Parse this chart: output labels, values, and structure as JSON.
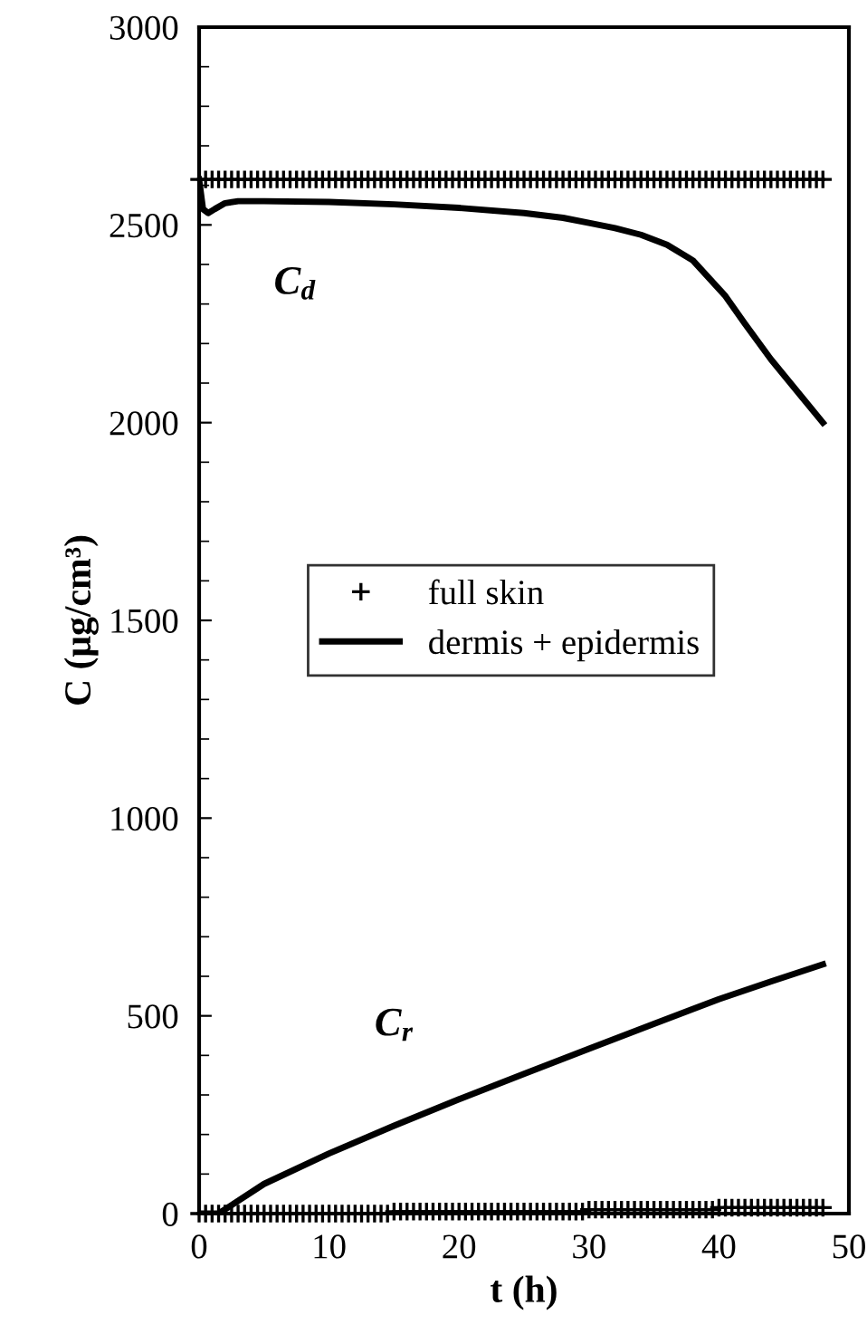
{
  "chart_data": {
    "type": "line",
    "xlabel": "t (h)",
    "ylabel": "C (μg/cm³)",
    "xlim": [
      0,
      50
    ],
    "xticks": [
      0,
      10,
      20,
      30,
      40,
      50
    ],
    "ylim": [
      0,
      3000
    ],
    "yticks": [
      0,
      500,
      1000,
      1500,
      2000,
      2500,
      3000
    ],
    "grid": false,
    "legend": "center",
    "annotations": [
      "C$_{d}$",
      "C$_{r}$"
    ],
    "series": [
      {
        "name": "full skin",
        "type": "scatter",
        "marker": "cross",
        "color": "#000000",
        "x": [
          0,
          0.5,
          1,
          1.5,
          2,
          2.5,
          3,
          3.5,
          4,
          4.5,
          5,
          5.5,
          6,
          6.5,
          7,
          7.5,
          8,
          8.5,
          9,
          9.5,
          10,
          10.5,
          11,
          11.5,
          12,
          12.5,
          13,
          13.5,
          14,
          14.5,
          15,
          15.5,
          16,
          16.5,
          17,
          17.5,
          18,
          18.5,
          19,
          19.5,
          20,
          20.5,
          21,
          21.5,
          22,
          22.5,
          23,
          23.5,
          24,
          24.5,
          25,
          25.5,
          26,
          26.5,
          27,
          27.5,
          28,
          28.5,
          29,
          29.5,
          30,
          30.5,
          31,
          31.5,
          32,
          32.5,
          33,
          33.5,
          34,
          34.5,
          35,
          35.5,
          36,
          36.5,
          37,
          37.5,
          38,
          38.5,
          39,
          39.5,
          40,
          40.5,
          41,
          41.5,
          42,
          42.5,
          43,
          43.5,
          44,
          44.5,
          45,
          45.5,
          46,
          46.5,
          47,
          47.5,
          48
        ],
        "values": [
          2615,
          2615,
          2615,
          2615,
          2615,
          2615,
          2615,
          2615,
          2615,
          2615,
          2615,
          2615,
          2615,
          2615,
          2615,
          2615,
          2615,
          2615,
          2615,
          2615,
          2615,
          2615,
          2615,
          2615,
          2615,
          2615,
          2615,
          2615,
          2615,
          2615,
          2615,
          2615,
          2615,
          2615,
          2615,
          2615,
          2615,
          2615,
          2615,
          2615,
          2615,
          2615,
          2615,
          2615,
          2615,
          2615,
          2615,
          2615,
          2615,
          2615,
          2615,
          2615,
          2615,
          2615,
          2615,
          2615,
          2615,
          2615,
          2615,
          2615,
          2615,
          2615,
          2615,
          2615,
          2615,
          2615,
          2615,
          2615,
          2615,
          2615,
          2615,
          2615,
          2615,
          2615,
          2615,
          2615,
          2615,
          2615,
          2615,
          2615,
          2615,
          2615,
          2615,
          2615,
          2615,
          2615,
          2615,
          2615,
          2615,
          2615,
          2615,
          2615,
          2615,
          2615,
          2615,
          2615,
          2615
        ]
      },
      {
        "type": "scatter",
        "marker": "cross",
        "color": "#000000",
        "x": [
          0,
          0.5,
          1,
          1.5,
          2,
          2.5,
          3,
          3.5,
          4,
          4.5,
          5,
          5.5,
          6,
          6.5,
          7,
          7.5,
          8,
          8.5,
          9,
          9.5,
          10,
          10.5,
          11,
          11.5,
          12,
          12.5,
          13,
          13.5,
          14,
          14.5,
          15,
          15.5,
          16,
          16.5,
          17,
          17.5,
          18,
          18.5,
          19,
          19.5,
          20,
          20.5,
          21,
          21.5,
          22,
          22.5,
          23,
          23.5,
          24,
          24.5,
          25,
          25.5,
          26,
          26.5,
          27,
          27.5,
          28,
          28.5,
          29,
          29.5,
          30,
          30.5,
          31,
          31.5,
          32,
          32.5,
          33,
          33.5,
          34,
          34.5,
          35,
          35.5,
          36,
          36.5,
          37,
          37.5,
          38,
          38.5,
          39,
          39.5,
          40,
          40.5,
          41,
          41.5,
          42,
          42.5,
          43,
          43.5,
          44,
          44.5,
          45,
          45.5,
          46,
          46.5,
          47,
          47.5,
          48
        ],
        "values": [
          0,
          0,
          0,
          0,
          0,
          0,
          0,
          0,
          0,
          0,
          0,
          0,
          0,
          0,
          0,
          0,
          0,
          0,
          0,
          0,
          0,
          0,
          0,
          0,
          0,
          0,
          0,
          0,
          0,
          0,
          5,
          5,
          5,
          5,
          5,
          5,
          5,
          5,
          5,
          5,
          5,
          5,
          5,
          5,
          5,
          5,
          5,
          5,
          5,
          5,
          5,
          5,
          5,
          5,
          5,
          5,
          5,
          5,
          5,
          5,
          10,
          10,
          10,
          10,
          10,
          10,
          10,
          10,
          10,
          10,
          10,
          10,
          10,
          10,
          10,
          10,
          10,
          10,
          10,
          10,
          15,
          15,
          15,
          15,
          15,
          15,
          15,
          15,
          15,
          15,
          15,
          15,
          15,
          15,
          15,
          15,
          15
        ]
      },
      {
        "name": "dermis + epidermis",
        "color": "#000000",
        "x": [
          0,
          0.3,
          0.7,
          1.2,
          2,
          3,
          5,
          10,
          15,
          20,
          25,
          28,
          30,
          32,
          34,
          36,
          38,
          40.5,
          42,
          44,
          46.5,
          48
        ],
        "values": [
          2615,
          2540,
          2530,
          2540,
          2555,
          2560,
          2560,
          2558,
          2552,
          2543,
          2530,
          2518,
          2505,
          2492,
          2475,
          2450,
          2410,
          2320,
          2250,
          2160,
          2060,
          2000
        ]
      },
      {
        "color": "#000000",
        "x": [
          0,
          1.5,
          5,
          10,
          15,
          20,
          25,
          30,
          35,
          40,
          44,
          48
        ],
        "values": [
          0,
          0,
          75,
          152,
          222,
          289,
          353,
          417,
          480,
          542,
          587,
          630
        ]
      }
    ]
  }
}
